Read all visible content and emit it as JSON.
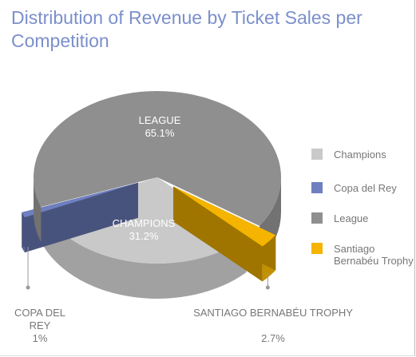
{
  "chart_data": {
    "type": "pie3d",
    "title": "Distribution of Revenue by Ticket Sales per Competition",
    "categories": [
      "Champions",
      "Copa del Rey",
      "League",
      "Santiago Bernabéu Trophy"
    ],
    "label_names": [
      "CHAMPIONS",
      "COPA DEL REY",
      "LEAGUE",
      "SANTIAGO BERNABÉU TROPHY"
    ],
    "values": [
      31.2,
      1,
      65.1,
      2.7
    ],
    "value_labels": [
      "31.2%",
      "1%",
      "65.1%",
      "2.7%"
    ],
    "colors": [
      "#c9c9c9",
      "#6f80c0",
      "#8f8f8f",
      "#f4b400"
    ],
    "exploded": [
      false,
      true,
      false,
      true
    ],
    "legend": "right"
  }
}
